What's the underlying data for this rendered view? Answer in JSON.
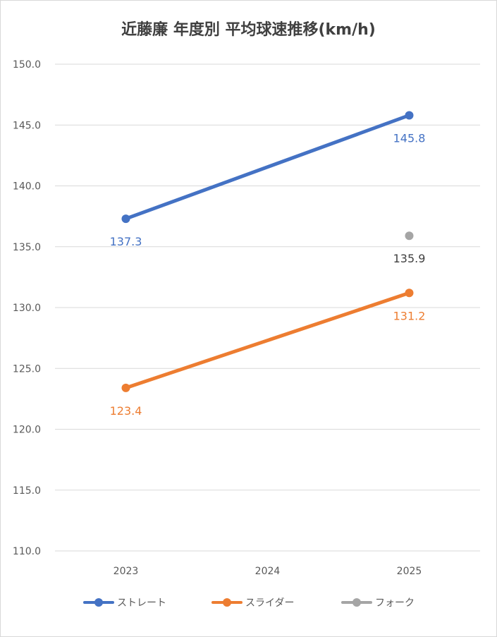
{
  "chart_data": {
    "type": "line",
    "title": "近藤廉 年度別 平均球速推移(km/h)",
    "xlabel": "",
    "ylabel": "",
    "categories": [
      "2023",
      "2024",
      "2025"
    ],
    "ylim": [
      110,
      150
    ],
    "ytick_step": 5,
    "ytick_labels": [
      "110.0",
      "115.0",
      "120.0",
      "125.0",
      "130.0",
      "135.0",
      "140.0",
      "145.0",
      "150.0"
    ],
    "grid": true,
    "legend_position": "bottom",
    "series": [
      {
        "name": "ストレート",
        "color": "#4472c4",
        "values": [
          137.3,
          null,
          145.8
        ],
        "labels": [
          "137.3",
          "",
          "145.8"
        ],
        "label_color": "#4472c4"
      },
      {
        "name": "スライダー",
        "color": "#ed7d31",
        "values": [
          123.4,
          null,
          131.2
        ],
        "labels": [
          "123.4",
          "",
          "131.2"
        ],
        "label_color": "#ed7d31"
      },
      {
        "name": "フォーク",
        "color": "#a5a5a5",
        "values": [
          null,
          null,
          135.9
        ],
        "labels": [
          "",
          "",
          "135.9"
        ],
        "label_color": "#404040"
      }
    ]
  }
}
